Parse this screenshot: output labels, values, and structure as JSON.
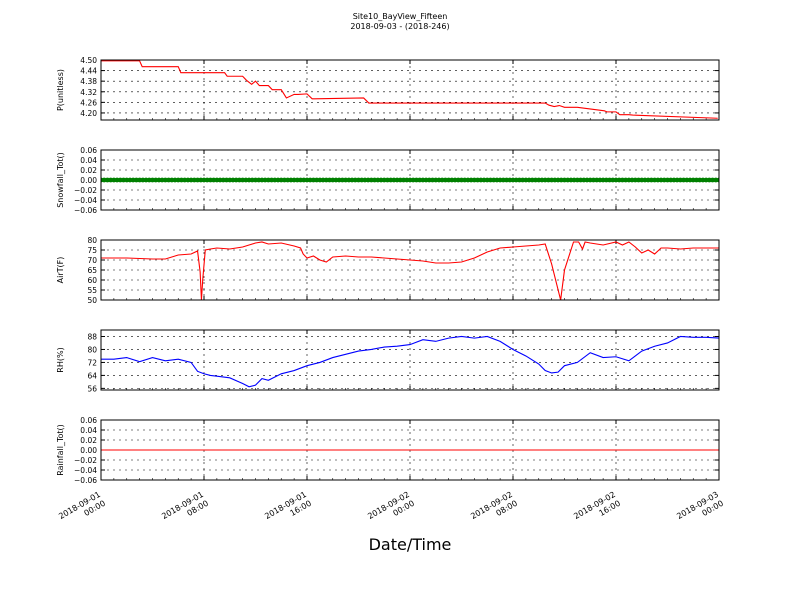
{
  "figure": {
    "title": "Site10_BayView_Fifteen",
    "subtitle": "2018-09-03 - (2018-246)",
    "xlabel": "Date/Time",
    "x_tick_labels": [
      [
        "2018-09-01",
        "00:00"
      ],
      [
        "2018-09-01",
        "08:00"
      ],
      [
        "2018-09-01",
        "16:00"
      ],
      [
        "2018-09-02",
        "00:00"
      ],
      [
        "2018-09-02",
        "08:00"
      ],
      [
        "2018-09-02",
        "16:00"
      ],
      [
        "2018-09-03",
        "00:00"
      ]
    ]
  },
  "chart_data": [
    {
      "type": "line",
      "ylabel": "P(unitless)",
      "ylim": [
        4.16,
        4.5
      ],
      "yticks": [
        4.2,
        4.26,
        4.32,
        4.38,
        4.44,
        4.5
      ],
      "ytick_labels": [
        "4.20",
        "4.26",
        "4.32",
        "4.38",
        "4.44",
        "4.50"
      ],
      "xlim": [
        "2018-09-01 00:00",
        "2018-09-03 00:00"
      ],
      "grid": true,
      "series": [
        {
          "color": "#ff0000",
          "x_hours": [
            0,
            3,
            3.2,
            6,
            6.2,
            9.6,
            9.8,
            11,
            11.3,
            11.7,
            12,
            12.3,
            13,
            13.3,
            14,
            14.4,
            15,
            15.3,
            16,
            16.4,
            16.6,
            20.4,
            20.8,
            34.5,
            34.8,
            35.2,
            35.6,
            36,
            37,
            39.1,
            39.3,
            40,
            40.3,
            41,
            41.3,
            47.9
          ],
          "values": [
            4.495,
            4.495,
            4.462,
            4.462,
            4.428,
            4.428,
            4.408,
            4.408,
            4.385,
            4.362,
            4.38,
            4.355,
            4.355,
            4.332,
            4.332,
            4.285,
            4.305,
            4.305,
            4.308,
            4.28,
            4.28,
            4.285,
            4.256,
            4.256,
            4.244,
            4.236,
            4.242,
            4.232,
            4.232,
            4.212,
            4.206,
            4.206,
            4.19,
            4.19,
            4.188,
            4.17
          ]
        }
      ]
    },
    {
      "type": "scatter",
      "ylabel": "Snowfall_Tot()",
      "ylim": [
        -0.06,
        0.06
      ],
      "yticks": [
        -0.06,
        -0.04,
        -0.02,
        0.0,
        0.02,
        0.04,
        0.06
      ],
      "ytick_labels": [
        "−0.06",
        "−0.04",
        "−0.02",
        "0.00",
        "0.02",
        "0.04",
        "0.06"
      ],
      "grid": true,
      "series": [
        {
          "color": "#008000",
          "x_hours_range": [
            0,
            48
          ],
          "constant_value": 0.0
        }
      ]
    },
    {
      "type": "line",
      "ylabel": "AirT(F)",
      "ylim": [
        50,
        80
      ],
      "yticks": [
        50,
        55,
        60,
        65,
        70,
        75,
        80
      ],
      "ytick_labels": [
        "50",
        "55",
        "60",
        "65",
        "70",
        "75",
        "80"
      ],
      "grid": true,
      "series": [
        {
          "color": "#ff0000",
          "x_hours": [
            0,
            2,
            4,
            5,
            6,
            7,
            7.5,
            7.7,
            7.8,
            7.9,
            8.1,
            8.5,
            9,
            10,
            11,
            11.5,
            12,
            12.5,
            13,
            14,
            15,
            15.5,
            15.7,
            16,
            16.5,
            17,
            17.5,
            18,
            19,
            20,
            21,
            22,
            23,
            24,
            25,
            26,
            27,
            28,
            29,
            30,
            31,
            32,
            33,
            34,
            34.5,
            35,
            35.7,
            36,
            36.7,
            36.9,
            37.1,
            37.4,
            37.6,
            38,
            38.5,
            39,
            40,
            40.5,
            41,
            41.5,
            42,
            42.5,
            43,
            43.5,
            44,
            45,
            46,
            47,
            48
          ],
          "values": [
            71,
            71,
            70.5,
            70.5,
            72.5,
            73,
            74.5,
            64,
            50,
            60,
            75,
            75.5,
            76,
            75.5,
            76.5,
            77.5,
            78.5,
            79,
            78,
            78.5,
            77,
            76,
            73,
            71,
            72,
            70,
            69,
            71.5,
            72,
            71.5,
            71.5,
            71,
            70.5,
            70,
            69.5,
            68.5,
            68.5,
            69,
            71,
            74,
            76,
            76.5,
            77,
            77.5,
            78,
            68,
            50,
            65,
            79,
            79,
            79,
            75.5,
            79,
            78.5,
            78,
            77.5,
            79,
            77.5,
            79,
            76.5,
            73.5,
            75,
            73,
            76,
            76,
            75.5,
            76,
            76,
            76
          ]
        }
      ]
    },
    {
      "type": "line",
      "ylabel": "RH(%)",
      "ylim": [
        55,
        92
      ],
      "yticks": [
        56,
        64,
        72,
        80,
        88
      ],
      "ytick_labels": [
        "56",
        "64",
        "72",
        "80",
        "88"
      ],
      "grid": true,
      "series": [
        {
          "color": "#0000ff",
          "x_hours": [
            0,
            1,
            2,
            3,
            4,
            5,
            6,
            7,
            7.5,
            8,
            8.5,
            9,
            10,
            11,
            11.5,
            12,
            12.5,
            13,
            14,
            15,
            16,
            17,
            18,
            19,
            20,
            21,
            22,
            23,
            24,
            25,
            26,
            27,
            28,
            29,
            30,
            31,
            32,
            33,
            34,
            34.5,
            35,
            35.5,
            36,
            37,
            38,
            39,
            40,
            41,
            42,
            43,
            44,
            45,
            46,
            47,
            48
          ],
          "values": [
            74,
            74,
            75,
            72.5,
            75,
            73,
            74,
            72,
            66.5,
            65,
            64,
            63.5,
            62.5,
            59,
            57,
            58,
            62,
            61,
            65,
            67,
            70,
            72,
            75,
            77,
            79,
            80,
            81.5,
            82,
            83,
            86,
            85,
            87,
            88,
            87,
            88,
            85,
            80,
            76,
            71,
            67,
            65.5,
            66,
            70,
            72,
            78,
            75,
            75.5,
            73,
            79,
            82,
            84,
            88,
            87.5,
            87.5,
            87
          ]
        }
      ]
    },
    {
      "type": "line",
      "ylabel": "Rainfall_Tot()",
      "ylim": [
        -0.06,
        0.06
      ],
      "yticks": [
        -0.06,
        -0.04,
        -0.02,
        0.0,
        0.02,
        0.04,
        0.06
      ],
      "ytick_labels": [
        "−0.06",
        "−0.04",
        "−0.02",
        "0.00",
        "0.02",
        "0.04",
        "0.06"
      ],
      "grid": true,
      "series": [
        {
          "color": "#ff0000",
          "x_hours": [
            0,
            48
          ],
          "values": [
            0.0,
            0.0
          ]
        }
      ]
    }
  ]
}
